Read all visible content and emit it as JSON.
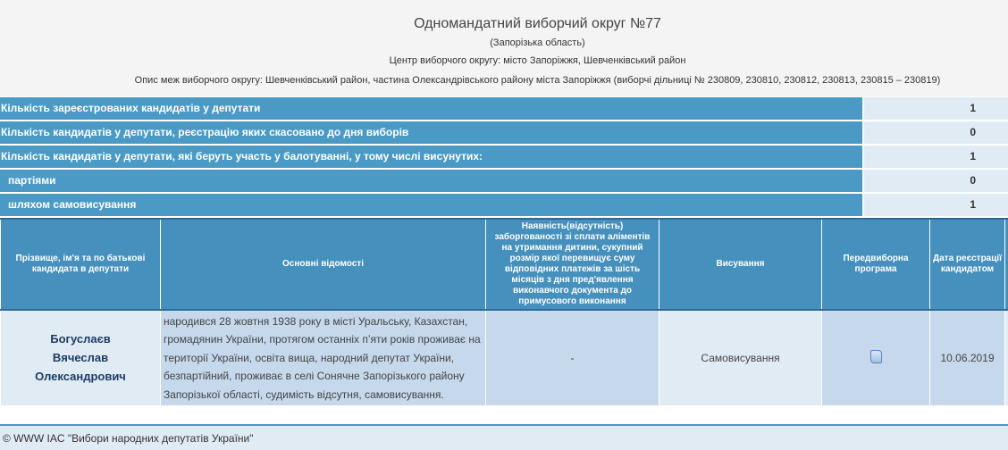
{
  "header": {
    "title": "Одномандатний виборчий округ №77",
    "region": "(Запорізька область)",
    "center": "Центр виборчого округу: місто Запоріжжя, Шевченківський район",
    "bounds": "Опис меж виборчого округу: Шевченківський район, частина Олександрівського району міста Запоріжжя (виборчі дільниці № 230809, 230810, 230812, 230813, 230815 – 230819)"
  },
  "summary": [
    {
      "label": "Кількість зареєстрованих кандидатів у депутати",
      "value": "1"
    },
    {
      "label": "Кількість кандидатів у депутати, реєстрацію яких скасовано до дня виборів",
      "value": "0"
    },
    {
      "label": "Кількість кандидатів у депутати, які беруть участь у балотуванні, у тому числі висунутих:",
      "value": "1"
    },
    {
      "label": "партіями",
      "value": "0"
    },
    {
      "label": "шляхом самовисування",
      "value": "1"
    }
  ],
  "table": {
    "headers": [
      "Прізвище, ім'я та по батькові кандидата в депутати",
      "Основні відомості",
      "Наявність(відсутність) заборгованості зі сплати аліментів на утримання дитини, сукупний розмір якої перевищує суму відповідних платежів за шість місяців з дня пред'явлення виконавчого документа до примусового виконання",
      "Висування",
      "Передвиборна програма",
      "Дата реєстрації кандидатом"
    ],
    "rows": [
      {
        "name_line1": "Богуслаєв",
        "name_line2": "Вячеслав",
        "name_line3": "Олександрович",
        "info": "народився 28 жовтня 1938 року в місті Уральську, Казахстан, громадянин України, протягом останніх п’яти років проживає на території України, освіта вища, народний депутат України, безпартійний, проживає в селі Сонячне Запорізького району Запорізької області, судимість відсутня, самовисування.",
        "alimony": "-",
        "nomination": "Самовисування",
        "program_icon": "document-icon",
        "date": "10.06.2019"
      }
    ]
  },
  "footer": {
    "text": "© WWW IAC \"Вибори народних депутатів України\""
  }
}
